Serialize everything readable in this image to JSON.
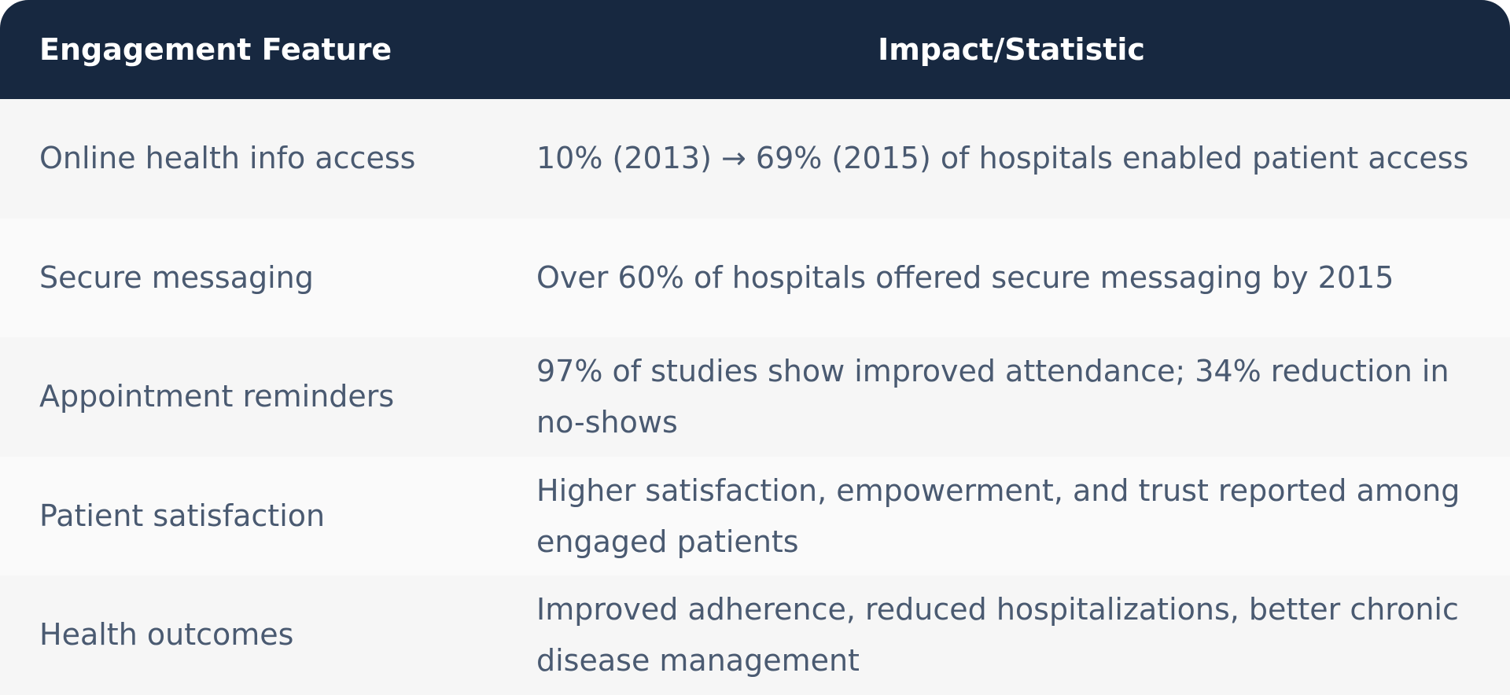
{
  "header": {
    "feature_label": "Engagement Feature",
    "impact_label": "Impact/Statistic"
  },
  "rows": [
    {
      "feature": "Online health info access",
      "impact": "10% (2013) → 69% (2015) of hospitals enabled patient access"
    },
    {
      "feature": "Secure messaging",
      "impact": "Over 60% of hospitals offered secure messaging by 2015"
    },
    {
      "feature": "Appointment reminders",
      "impact": "97% of studies show improved attendance; 34% reduction in no-shows"
    },
    {
      "feature": "Patient satisfaction",
      "impact": "Higher satisfaction, empowerment, and trust reported among engaged patients"
    },
    {
      "feature": "Health outcomes",
      "impact": "Improved adherence, reduced hospitalizations, better chronic disease management"
    }
  ],
  "colors": {
    "header_bg": "#172840",
    "header_text": "#ffffff",
    "row_text": "#4a5a71",
    "row_odd_bg": "#f6f6f6",
    "row_even_bg": "#fafafa"
  }
}
